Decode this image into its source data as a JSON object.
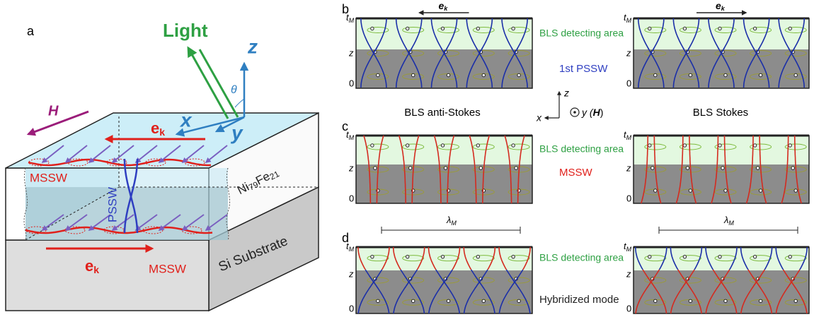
{
  "panel_a": {
    "label": "a",
    "light": "Light",
    "axis_z": "z",
    "axis_x": "x",
    "axis_y": "y",
    "theta": "θ",
    "field": "H",
    "ek_top": {
      "main": "e",
      "sub": "k"
    },
    "mssw_top": "MSSW",
    "pssw": "PSSW",
    "film": [
      "Ni",
      "79",
      "Fe",
      "21"
    ],
    "substrate": "Si Substrate",
    "ek_bottom": {
      "main": "e",
      "sub": "k"
    },
    "mssw_bottom": "MSSW"
  },
  "axes_key": {
    "z": "z",
    "x": "x",
    "y": [
      "y (",
      "H",
      ")"
    ]
  },
  "left_title": "BLS anti-Stokes",
  "right_title": "BLS Stokes",
  "panels": [
    {
      "label": "b",
      "left": {
        "tm": {
          "main": "t",
          "sub": "M"
        },
        "z": "z",
        "zero": "0",
        "ek": {
          "main": "e",
          "sub": "k"
        }
      },
      "right": {
        "tm": {
          "main": "t",
          "sub": "M"
        },
        "z": "z",
        "zero": "0",
        "ek": {
          "main": "e",
          "sub": "k"
        }
      },
      "area": "BLS detecting area",
      "mode": "1st PSSW"
    },
    {
      "label": "c",
      "left": {
        "tm": {
          "main": "t",
          "sub": "M"
        },
        "z": "z",
        "zero": "0"
      },
      "right": {
        "tm": {
          "main": "t",
          "sub": "M"
        },
        "z": "z",
        "zero": "0"
      },
      "area": "BLS detecting area",
      "mode": "MSSW"
    },
    {
      "label": "d",
      "left": {
        "tm": {
          "main": "t",
          "sub": "M"
        },
        "z": "z",
        "zero": "0",
        "lambda": {
          "main": "λ",
          "sub": "M"
        }
      },
      "right": {
        "tm": {
          "main": "t",
          "sub": "M"
        },
        "z": "z",
        "zero": "0",
        "lambda": {
          "main": "λ",
          "sub": "M"
        }
      },
      "area": "BLS detecting area",
      "mode": "Hybridized mode"
    }
  ]
}
